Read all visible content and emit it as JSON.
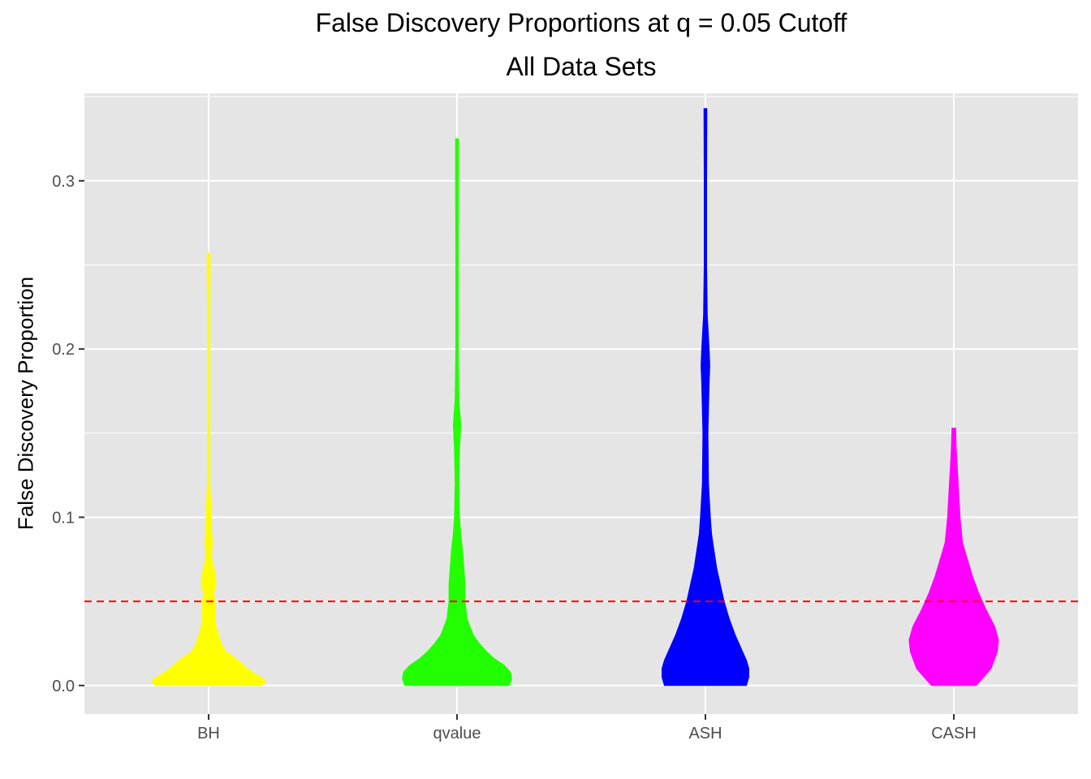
{
  "chart_data": {
    "type": "violin",
    "title": "False Discovery Proportions at q = 0.05 Cutoff",
    "subtitle": "All Data Sets",
    "xlabel": "",
    "ylabel": "False Discovery Proportion",
    "ylim": [
      -0.017,
      0.352
    ],
    "yticks": [
      0.0,
      0.1,
      0.2,
      0.3
    ],
    "ytick_labels": [
      "0.0",
      "0.1",
      "0.2",
      "0.3"
    ],
    "categories": [
      "BH",
      "qvalue",
      "ASH",
      "CASH"
    ],
    "grid": true,
    "reference_line": {
      "y": 0.05,
      "color": "#ff0000",
      "style": "dashed"
    },
    "series": [
      {
        "category": "BH",
        "color": "#ffff00",
        "min": 0.0,
        "max": 0.257,
        "profile": [
          [
            0.0,
            0.42
          ],
          [
            0.002,
            0.46
          ],
          [
            0.004,
            0.44
          ],
          [
            0.008,
            0.35
          ],
          [
            0.012,
            0.28
          ],
          [
            0.016,
            0.22
          ],
          [
            0.02,
            0.14
          ],
          [
            0.025,
            0.1
          ],
          [
            0.03,
            0.08
          ],
          [
            0.035,
            0.06
          ],
          [
            0.04,
            0.05
          ],
          [
            0.05,
            0.05
          ],
          [
            0.055,
            0.04
          ],
          [
            0.06,
            0.06
          ],
          [
            0.065,
            0.055
          ],
          [
            0.07,
            0.04
          ],
          [
            0.075,
            0.025
          ],
          [
            0.08,
            0.025
          ],
          [
            0.085,
            0.03
          ],
          [
            0.09,
            0.025
          ],
          [
            0.1,
            0.02
          ],
          [
            0.11,
            0.015
          ],
          [
            0.12,
            0.01
          ],
          [
            0.15,
            0.008
          ],
          [
            0.2,
            0.008
          ],
          [
            0.25,
            0.012
          ],
          [
            0.257,
            0.012
          ]
        ]
      },
      {
        "category": "qvalue",
        "color": "#22ff00",
        "min": 0.0,
        "max": 0.325,
        "profile": [
          [
            0.0,
            0.42
          ],
          [
            0.004,
            0.44
          ],
          [
            0.008,
            0.43
          ],
          [
            0.012,
            0.38
          ],
          [
            0.016,
            0.3
          ],
          [
            0.02,
            0.24
          ],
          [
            0.025,
            0.18
          ],
          [
            0.03,
            0.13
          ],
          [
            0.04,
            0.08
          ],
          [
            0.05,
            0.065
          ],
          [
            0.06,
            0.065
          ],
          [
            0.07,
            0.055
          ],
          [
            0.08,
            0.045
          ],
          [
            0.09,
            0.03
          ],
          [
            0.1,
            0.02
          ],
          [
            0.12,
            0.015
          ],
          [
            0.14,
            0.02
          ],
          [
            0.155,
            0.03
          ],
          [
            0.17,
            0.015
          ],
          [
            0.2,
            0.01
          ],
          [
            0.25,
            0.01
          ],
          [
            0.3,
            0.012
          ],
          [
            0.325,
            0.012
          ]
        ]
      },
      {
        "category": "ASH",
        "color": "#0000ff",
        "min": 0.0,
        "max": 0.343,
        "profile": [
          [
            0.0,
            0.33
          ],
          [
            0.005,
            0.35
          ],
          [
            0.01,
            0.35
          ],
          [
            0.015,
            0.33
          ],
          [
            0.02,
            0.3
          ],
          [
            0.03,
            0.24
          ],
          [
            0.04,
            0.19
          ],
          [
            0.05,
            0.15
          ],
          [
            0.06,
            0.12
          ],
          [
            0.07,
            0.09
          ],
          [
            0.08,
            0.07
          ],
          [
            0.09,
            0.05
          ],
          [
            0.1,
            0.04
          ],
          [
            0.12,
            0.025
          ],
          [
            0.15,
            0.02
          ],
          [
            0.18,
            0.03
          ],
          [
            0.19,
            0.035
          ],
          [
            0.2,
            0.03
          ],
          [
            0.22,
            0.015
          ],
          [
            0.25,
            0.01
          ],
          [
            0.3,
            0.01
          ],
          [
            0.343,
            0.012
          ]
        ]
      },
      {
        "category": "CASH",
        "color": "#ff00ff",
        "min": 0.0,
        "max": 0.153,
        "profile": [
          [
            0.0,
            0.18
          ],
          [
            0.005,
            0.24
          ],
          [
            0.01,
            0.3
          ],
          [
            0.02,
            0.35
          ],
          [
            0.027,
            0.36
          ],
          [
            0.035,
            0.33
          ],
          [
            0.045,
            0.26
          ],
          [
            0.055,
            0.2
          ],
          [
            0.065,
            0.15
          ],
          [
            0.075,
            0.11
          ],
          [
            0.085,
            0.07
          ],
          [
            0.1,
            0.05
          ],
          [
            0.12,
            0.035
          ],
          [
            0.14,
            0.02
          ],
          [
            0.153,
            0.015
          ]
        ]
      }
    ]
  }
}
